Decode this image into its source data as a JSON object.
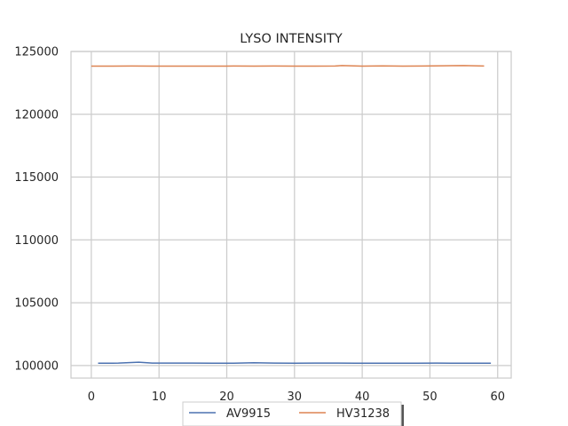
{
  "chart_data": {
    "type": "line",
    "title": "LYSO INTENSITY",
    "xlabel": "",
    "ylabel": "",
    "xlim": [
      -3,
      62
    ],
    "ylim": [
      99000,
      125000
    ],
    "xticks": [
      0,
      10,
      20,
      30,
      40,
      50,
      60
    ],
    "yticks": [
      100000,
      105000,
      110000,
      115000,
      120000,
      125000
    ],
    "grid": true,
    "legend_position": "bottom-center",
    "series": [
      {
        "name": "AV9915",
        "color": "#4c72b0",
        "x": [
          1,
          4,
          7,
          9,
          12,
          15,
          18,
          21,
          24,
          27,
          30,
          33,
          36,
          39,
          42,
          45,
          48,
          51,
          54,
          57,
          59
        ],
        "y": [
          100180,
          100190,
          100260,
          100190,
          100190,
          100190,
          100180,
          100180,
          100220,
          100190,
          100180,
          100190,
          100190,
          100180,
          100180,
          100180,
          100180,
          100190,
          100180,
          100180,
          100180
        ]
      },
      {
        "name": "HV31238",
        "color": "#dd8452",
        "x": [
          0,
          3,
          6,
          9,
          12,
          15,
          18,
          21,
          24,
          27,
          30,
          33,
          36,
          37,
          40,
          43,
          46,
          49,
          52,
          55,
          58
        ],
        "y": [
          123830,
          123830,
          123840,
          123830,
          123830,
          123830,
          123830,
          123840,
          123830,
          123840,
          123830,
          123830,
          123840,
          123880,
          123830,
          123850,
          123830,
          123840,
          123860,
          123880,
          123840
        ]
      }
    ]
  }
}
